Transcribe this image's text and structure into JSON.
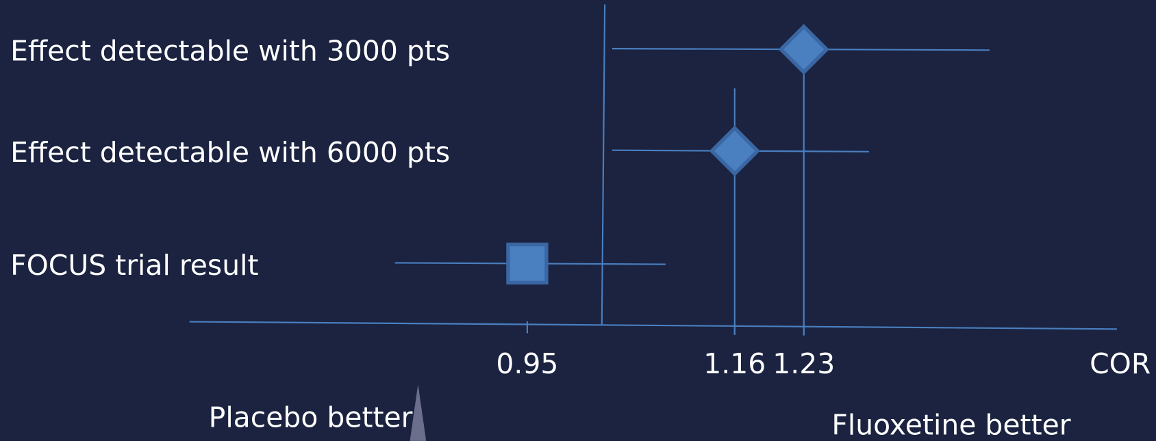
{
  "chart_data": {
    "type": "forest",
    "rows": [
      {
        "label": "Effect detectable with 3000 pts",
        "estimate": 1.23,
        "ci": [
          1.036,
          1.418
        ],
        "marker": "diamond"
      },
      {
        "label": "Effect detectable with 6000 pts",
        "estimate": 1.16,
        "ci": [
          1.036,
          1.296
        ],
        "marker": "diamond"
      },
      {
        "label": "FOCUS trial result",
        "estimate": 0.95,
        "ci": [
          0.816,
          1.09
        ],
        "marker": "square"
      }
    ],
    "reference": 1.027,
    "xlim": [
      0.608,
      1.547
    ],
    "xticks": [
      0.95,
      1.16,
      1.23
    ],
    "xlabel": "COR",
    "left_note": "Placebo better",
    "right_note": "Fluoxetine better",
    "color": "#4a7fc0",
    "edge_color": "#3a67a3"
  }
}
